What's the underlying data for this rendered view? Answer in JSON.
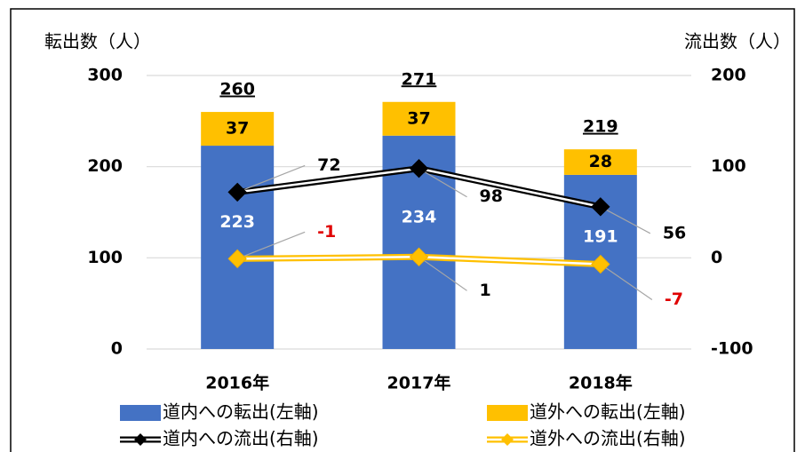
{
  "chart_data": {
    "type": "bar",
    "y_label": "転出数（人）",
    "y2_label": "流出数（人）",
    "categories": [
      "2016年",
      "2017年",
      "2018年"
    ],
    "series": [
      {
        "name": "道内への転出(左軸)",
        "type": "bar",
        "color": "#4472c4",
        "values": [
          223,
          234,
          191
        ]
      },
      {
        "name": "道外への転出(左軸)",
        "type": "bar",
        "color": "#ffc000",
        "values": [
          37,
          37,
          28
        ]
      },
      {
        "name": "道内への流出(右軸)",
        "type": "line",
        "axis": "y2",
        "color": "#000000",
        "values": [
          72,
          98,
          56
        ]
      },
      {
        "name": "道外への流出(右軸)",
        "type": "line",
        "axis": "y2",
        "color": "#ffc000",
        "values": [
          -1,
          1,
          -7
        ]
      }
    ],
    "totals": [
      260,
      271,
      219
    ],
    "ylim": [
      0,
      300
    ],
    "yticks": [
      0,
      100,
      200,
      300
    ],
    "y2lim": [
      -100,
      200
    ],
    "y2ticks": [
      -100,
      0,
      100,
      200
    ],
    "grid": true
  }
}
